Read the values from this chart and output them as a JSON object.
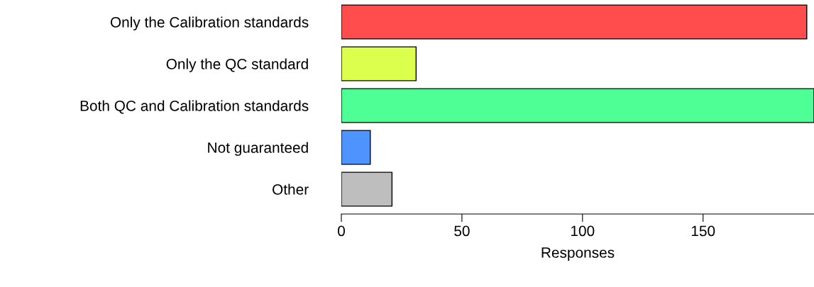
{
  "chart_data": {
    "type": "bar",
    "orientation": "horizontal",
    "xlabel": "Responses",
    "categories": [
      "Only the Calibration standards",
      "Only the QC standard",
      "Both QC and Calibration standards",
      "Not guaranteed",
      "Other"
    ],
    "values": [
      193,
      31,
      196,
      12,
      21
    ],
    "colors": [
      "#ff4d4d",
      "#dcff4d",
      "#4dff94",
      "#4d94ff",
      "#bebebe"
    ],
    "xlim": [
      0,
      196
    ],
    "xticks": [
      0,
      50,
      100,
      150
    ],
    "grid": false,
    "legend": false
  }
}
